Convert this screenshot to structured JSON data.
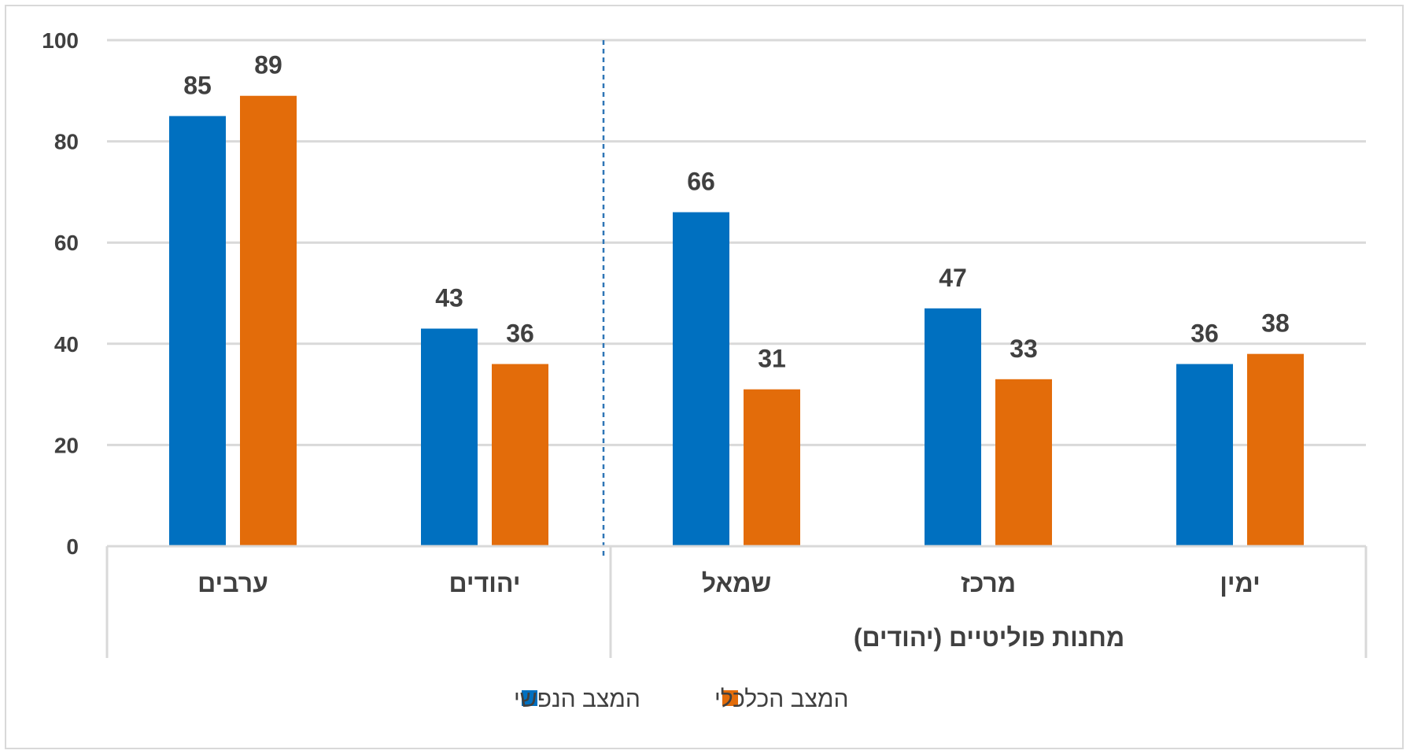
{
  "chart_data": {
    "type": "bar",
    "categories": [
      "ערבים",
      "יהודים",
      "שמאל",
      "מרכז",
      "ימין"
    ],
    "group_label": "מחנות פוליטיים (יהודים)",
    "series": [
      {
        "name": "המצב הנפשי",
        "values": [
          85,
          43,
          66,
          47,
          36
        ],
        "color": "#0070c0"
      },
      {
        "name": "המצב הכלכלי",
        "values": [
          89,
          36,
          31,
          33,
          38
        ],
        "color": "#e36c0a"
      }
    ],
    "ylim": [
      0,
      100
    ],
    "yticks": [
      "0",
      "20",
      "40",
      "60",
      "80",
      "100"
    ],
    "grid": true,
    "legend_position": "bottom",
    "gridline_color": "#d9d9d9",
    "separator_color": "#2e75b6",
    "text_color": "#404040"
  }
}
